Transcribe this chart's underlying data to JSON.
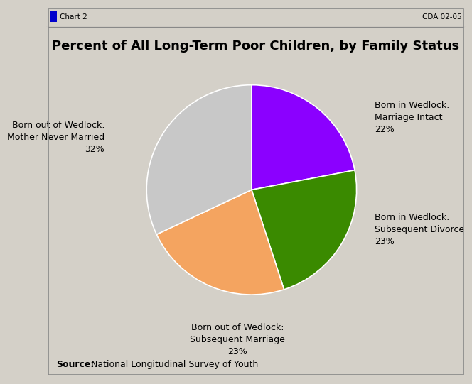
{
  "title": "Percent of All Long-Term Poor Children, by Family Status",
  "slices": [
    {
      "label": "Born in Wedlock:\nMarriage Intact\n22%",
      "value": 22,
      "color": "#8B00FF"
    },
    {
      "label": "Born in Wedlock:\nSubsequent Divorce\n23%",
      "value": 23,
      "color": "#3A8A00"
    },
    {
      "label": "Born out of Wedlock:\nSubsequent Marriage\n23%",
      "value": 23,
      "color": "#F4A460"
    },
    {
      "label": "Born out of Wedlock:\nMother Never Married\n32%",
      "value": 32,
      "color": "#C8C8C8"
    }
  ],
  "source_bold": "Source:",
  "source_rest": " National Longitudinal Survey of Youth",
  "header_left": "Chart 2",
  "header_right": "CDA 02-05",
  "background_color": "#D4D0C8",
  "chart_bg": "#FFFFFF",
  "title_fontsize": 13,
  "label_fontsize": 9,
  "source_fontsize": 9,
  "start_angle": 90
}
